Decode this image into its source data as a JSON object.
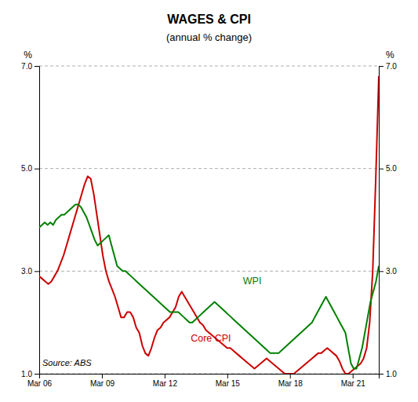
{
  "chart_data": {
    "type": "line",
    "title": "WAGES & CPI",
    "subtitle": "(annual % change)",
    "ylabel": "%",
    "y2label": "%",
    "xlim": [
      2006.25,
      2022.5
    ],
    "xticks": [
      {
        "value": 2006.25,
        "label": "Mar 06"
      },
      {
        "value": 2009.25,
        "label": "Mar 09"
      },
      {
        "value": 2012.25,
        "label": "Mar 12"
      },
      {
        "value": 2015.25,
        "label": "Mar 15"
      },
      {
        "value": 2018.25,
        "label": "Mar 18"
      },
      {
        "value": 2021.25,
        "label": "Mar 21"
      }
    ],
    "ylim": [
      1.0,
      7.0
    ],
    "yticks": [
      {
        "value": 1.0,
        "label": "1.0"
      },
      {
        "value": 3.0,
        "label": "3.0"
      },
      {
        "value": 5.0,
        "label": "5.0"
      },
      {
        "value": 7.0,
        "label": "7.0"
      }
    ],
    "y2lim": [
      1.0,
      7.0
    ],
    "y2ticks": [
      {
        "value": 1.0,
        "label": "1.0"
      },
      {
        "value": 3.0,
        "label": "3.0"
      },
      {
        "value": 5.0,
        "label": "5.0"
      },
      {
        "value": 7.0,
        "label": "7.0"
      }
    ],
    "grid": true,
    "series": [
      {
        "color": "#cc0000",
        "x": [
          2006.25,
          2006.3951,
          2006.5402,
          2006.6853,
          2006.8304,
          2006.9754,
          2007.1205,
          2007.265625,
          2007.4107,
          2007.5558,
          2007.7009,
          2007.846,
          2007.9911,
          2008.1362,
          2008.28125,
          2008.4263,
          2008.5714,
          2008.7165,
          2008.8616,
          2009.0067,
          2009.1518,
          2009.296875,
          2009.442,
          2009.5871,
          2009.7321,
          2009.8772,
          2010.0223,
          2010.1674,
          2010.3125,
          2010.4576,
          2010.6027,
          2010.7478,
          2010.8929,
          2011.0379,
          2011.183,
          2011.328125,
          2011.4732,
          2011.6183,
          2011.7634,
          2011.9085,
          2012.0536,
          2012.1987,
          2012.34375,
          2012.4888,
          2012.6339,
          2012.779,
          2012.9241,
          2013.0692,
          2013.2143,
          2013.359375,
          2013.5045,
          2013.6496,
          2013.7946,
          2013.9397,
          2014.0848,
          2014.2299,
          2014.375,
          2014.5201,
          2014.6652,
          2014.8103,
          2014.9554,
          2015.1004,
          2015.2455,
          2015.390625,
          2015.5357,
          2015.6808,
          2015.8259,
          2015.971,
          2016.1161,
          2016.2612,
          2016.40625,
          2016.5513,
          2016.6964,
          2016.8415,
          2016.9866,
          2017.1317,
          2017.2768,
          2017.421875,
          2017.567,
          2017.7121,
          2017.8571,
          2018.0022,
          2018.1473,
          2018.2924,
          2018.4375,
          2018.5826,
          2018.7277,
          2018.8728,
          2019.0179,
          2019.1629,
          2019.308,
          2019.453125,
          2019.5982,
          2019.7433,
          2019.8884,
          2020.0335,
          2020.1786,
          2020.3237,
          2020.46875,
          2020.6138,
          2020.7589,
          2020.904,
          2021.0491,
          2021.1942,
          2021.3393,
          2021.484375,
          2021.6295,
          2021.7746,
          2021.9196,
          2022.0647,
          2022.2098,
          2022.3549,
          2022.5
        ],
        "values": [
          2.9,
          2.85,
          2.8,
          2.75,
          2.8,
          2.9,
          3.0,
          3.15,
          3.3,
          3.5,
          3.7,
          3.9,
          4.1,
          4.3,
          4.5,
          4.7,
          4.85,
          4.8,
          4.5,
          4.1,
          3.7,
          3.3,
          3.0,
          2.8,
          2.65,
          2.5,
          2.3,
          2.1,
          2.1,
          2.2,
          2.2,
          2.1,
          1.9,
          1.8,
          1.55,
          1.4,
          1.35,
          1.5,
          1.7,
          1.85,
          1.9,
          2.0,
          2.05,
          2.1,
          2.2,
          2.3,
          2.5,
          2.6,
          2.5,
          2.4,
          2.3,
          2.2,
          2.1,
          2.0,
          1.95,
          1.85,
          1.8,
          1.75,
          1.7,
          1.65,
          1.6,
          1.55,
          1.5,
          1.5,
          1.45,
          1.4,
          1.35,
          1.3,
          1.25,
          1.2,
          1.15,
          1.1,
          1.15,
          1.2,
          1.25,
          1.3,
          1.25,
          1.2,
          1.15,
          1.1,
          1.05,
          1.0,
          1.0,
          1.0,
          1.0,
          1.05,
          1.1,
          1.15,
          1.2,
          1.25,
          1.3,
          1.35,
          1.4,
          1.4,
          1.45,
          1.5,
          1.45,
          1.4,
          1.35,
          1.25,
          1.1,
          1.0,
          1.0,
          1.05,
          1.1,
          1.15,
          1.2,
          1.3,
          1.5,
          2.0,
          3.0,
          4.8,
          6.8
        ]
      },
      {
        "color": "#008000",
        "x": [
          2006.25,
          2006.3832,
          2006.5164,
          2006.6496,
          2006.7828,
          2006.916,
          2007.0492,
          2007.1824,
          2007.3156,
          2007.4488,
          2007.582,
          2007.7152,
          2007.8484,
          2007.9816,
          2008.1148,
          2008.248,
          2008.3811,
          2008.5143,
          2008.6475,
          2008.7807,
          2008.9139,
          2009.0471,
          2009.1803,
          2009.3135,
          2009.4467,
          2009.5799,
          2009.7131,
          2009.8463,
          2009.9795,
          2010.1127,
          2010.2459,
          2010.3791,
          2010.5123,
          2010.6455,
          2010.7787,
          2010.9119,
          2011.0451,
          2011.1783,
          2011.3115,
          2011.4447,
          2011.5779,
          2011.7111,
          2011.8443,
          2011.9775,
          2012.1107,
          2012.2439,
          2012.377,
          2012.5102,
          2012.6434,
          2012.7766,
          2012.9098,
          2013.043,
          2013.1762,
          2013.3094,
          2013.4426,
          2013.5758,
          2013.709,
          2013.8422,
          2013.9754,
          2014.1086,
          2014.2418,
          2014.375,
          2014.5082,
          2014.6414,
          2014.7746,
          2014.9078,
          2015.041,
          2015.1742,
          2015.3074,
          2015.4406,
          2015.5738,
          2015.707,
          2015.8402,
          2015.9734,
          2016.1066,
          2016.2398,
          2016.373,
          2016.5061,
          2016.6393,
          2016.7725,
          2016.9057,
          2017.0389,
          2017.1721,
          2017.3053,
          2017.4385,
          2017.5717,
          2017.7049,
          2017.8381,
          2017.9713,
          2018.1045,
          2018.2377,
          2018.3709,
          2018.5041,
          2018.6373,
          2018.7705,
          2018.9037,
          2019.0369,
          2019.1701,
          2019.3033,
          2019.4365,
          2019.5697,
          2019.7029,
          2019.8361,
          2019.9693,
          2020.1025,
          2020.2357,
          2020.3689,
          2020.502,
          2020.6352,
          2020.7684,
          2020.9016,
          2021.0348,
          2021.168,
          2021.3012,
          2021.4344,
          2021.5676,
          2021.7008,
          2021.834,
          2021.9672,
          2022.1004,
          2022.2336,
          2022.3668,
          2022.5
        ],
        "values": [
          3.85,
          3.9,
          3.95,
          3.9,
          3.95,
          3.9,
          4.0,
          4.05,
          4.1,
          4.1,
          4.15,
          4.2,
          4.25,
          4.3,
          4.3,
          4.25,
          4.15,
          4.05,
          3.9,
          3.75,
          3.6,
          3.5,
          3.55,
          3.6,
          3.65,
          3.7,
          3.5,
          3.3,
          3.1,
          3.05,
          3.0,
          3.0,
          2.95,
          2.9,
          2.85,
          2.8,
          2.75,
          2.7,
          2.65,
          2.6,
          2.55,
          2.5,
          2.45,
          2.4,
          2.35,
          2.3,
          2.25,
          2.2,
          2.2,
          2.2,
          2.2,
          2.15,
          2.1,
          2.05,
          2.0,
          2.0,
          2.05,
          2.1,
          2.15,
          2.2,
          2.25,
          2.3,
          2.35,
          2.4,
          2.35,
          2.3,
          2.25,
          2.2,
          2.15,
          2.1,
          2.05,
          2.0,
          1.95,
          1.9,
          1.85,
          1.8,
          1.75,
          1.7,
          1.65,
          1.6,
          1.55,
          1.5,
          1.45,
          1.4,
          1.4,
          1.4,
          1.4,
          1.45,
          1.5,
          1.55,
          1.6,
          1.65,
          1.7,
          1.75,
          1.8,
          1.85,
          1.9,
          1.95,
          2.0,
          2.1,
          2.2,
          2.3,
          2.4,
          2.5,
          2.4,
          2.3,
          2.2,
          2.1,
          2.0,
          1.9,
          1.8,
          1.5,
          1.2,
          1.1,
          1.1,
          1.3,
          1.5,
          1.8,
          2.1,
          2.4,
          2.6,
          2.8,
          3.1
        ]
      }
    ],
    "annotations": [
      {
        "text": "WPI",
        "x": 2016.0,
        "y": 2.75,
        "color": "#008000"
      },
      {
        "text": "Core CPI",
        "x": 2013.5,
        "y": 1.62,
        "color": "#cc0000"
      },
      {
        "text": "Source: ABS",
        "x": 2006.4,
        "y": 1.15
      }
    ]
  }
}
